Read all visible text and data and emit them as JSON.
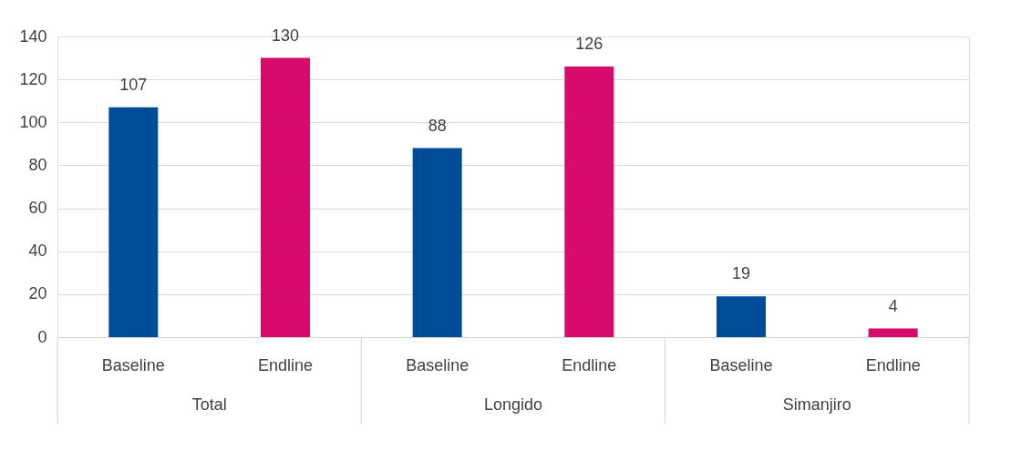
{
  "chart_data": {
    "type": "bar",
    "categories": [
      "Baseline",
      "Endline",
      "Baseline",
      "Endline",
      "Baseline",
      "Endline"
    ],
    "values": [
      107,
      130,
      88,
      126,
      19,
      4
    ],
    "colors": [
      "#004c97",
      "#d60b6c",
      "#004c97",
      "#d60b6c",
      "#004c97",
      "#d60b6c"
    ],
    "ylim": [
      0,
      140
    ],
    "yticks": [
      0,
      20,
      40,
      60,
      80,
      100,
      120,
      140
    ],
    "grid": "y",
    "data_labels": true,
    "annotations": [
      "Total",
      "Longido",
      "Simanjiro"
    ]
  }
}
